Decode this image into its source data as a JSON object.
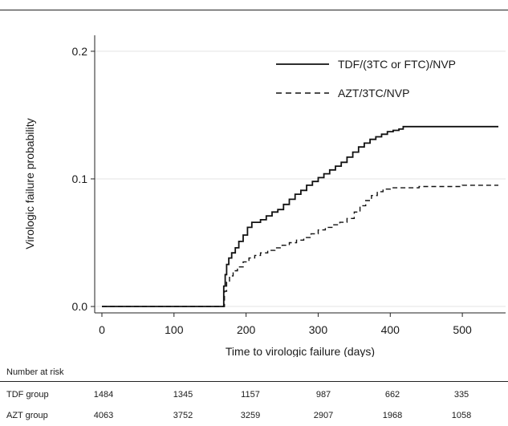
{
  "chart_data": {
    "type": "line",
    "title": "",
    "xlabel": "Time to virologic failure (days)",
    "ylabel": "Virologic failure probability",
    "xlim": [
      -10,
      560
    ],
    "ylim": [
      -0.005,
      0.21
    ],
    "xticks": [
      0,
      100,
      200,
      300,
      400,
      500
    ],
    "yticks": [
      0.0,
      0.1,
      0.2
    ],
    "ytick_labels": [
      "0.0",
      "0.1",
      "0.2"
    ],
    "grid": "horizontal",
    "legend_position": "top-right",
    "series": [
      {
        "name": "TDF/(3TC or FTC)/NVP",
        "style": "solid",
        "color": "#111111",
        "x": [
          0,
          168,
          169,
          171,
          173,
          176,
          180,
          185,
          190,
          196,
          202,
          208,
          214,
          220,
          228,
          236,
          244,
          252,
          260,
          268,
          276,
          284,
          292,
          300,
          308,
          316,
          324,
          332,
          340,
          348,
          356,
          364,
          372,
          380,
          388,
          396,
          404,
          412,
          418,
          550
        ],
        "y": [
          0,
          0,
          0.016,
          0.025,
          0.033,
          0.038,
          0.042,
          0.046,
          0.051,
          0.056,
          0.062,
          0.066,
          0.066,
          0.068,
          0.071,
          0.074,
          0.076,
          0.08,
          0.084,
          0.088,
          0.091,
          0.095,
          0.098,
          0.101,
          0.104,
          0.107,
          0.11,
          0.113,
          0.117,
          0.121,
          0.125,
          0.128,
          0.131,
          0.133,
          0.135,
          0.137,
          0.138,
          0.139,
          0.141,
          0.141
        ]
      },
      {
        "name": "AZT/3TC/NVP",
        "style": "dashed",
        "color": "#111111",
        "x": [
          0,
          168,
          170,
          173,
          177,
          182,
          188,
          196,
          204,
          212,
          220,
          230,
          240,
          250,
          260,
          270,
          280,
          290,
          300,
          310,
          320,
          330,
          340,
          350,
          358,
          366,
          374,
          382,
          390,
          400,
          420,
          440,
          470,
          500,
          550
        ],
        "y": [
          0,
          0,
          0.012,
          0.019,
          0.024,
          0.028,
          0.031,
          0.035,
          0.038,
          0.04,
          0.042,
          0.044,
          0.046,
          0.048,
          0.05,
          0.052,
          0.054,
          0.057,
          0.06,
          0.062,
          0.064,
          0.066,
          0.069,
          0.074,
          0.079,
          0.083,
          0.087,
          0.09,
          0.092,
          0.093,
          0.093,
          0.094,
          0.094,
          0.095,
          0.095
        ]
      }
    ]
  },
  "risk_table": {
    "header": "Number at risk",
    "rows": [
      {
        "label": "TDF group",
        "values": [
          "1484",
          "1345",
          "1157",
          "987",
          "662",
          "335"
        ]
      },
      {
        "label": "AZT group",
        "values": [
          "4063",
          "3752",
          "3259",
          "2907",
          "1968",
          "1058"
        ]
      }
    ]
  }
}
